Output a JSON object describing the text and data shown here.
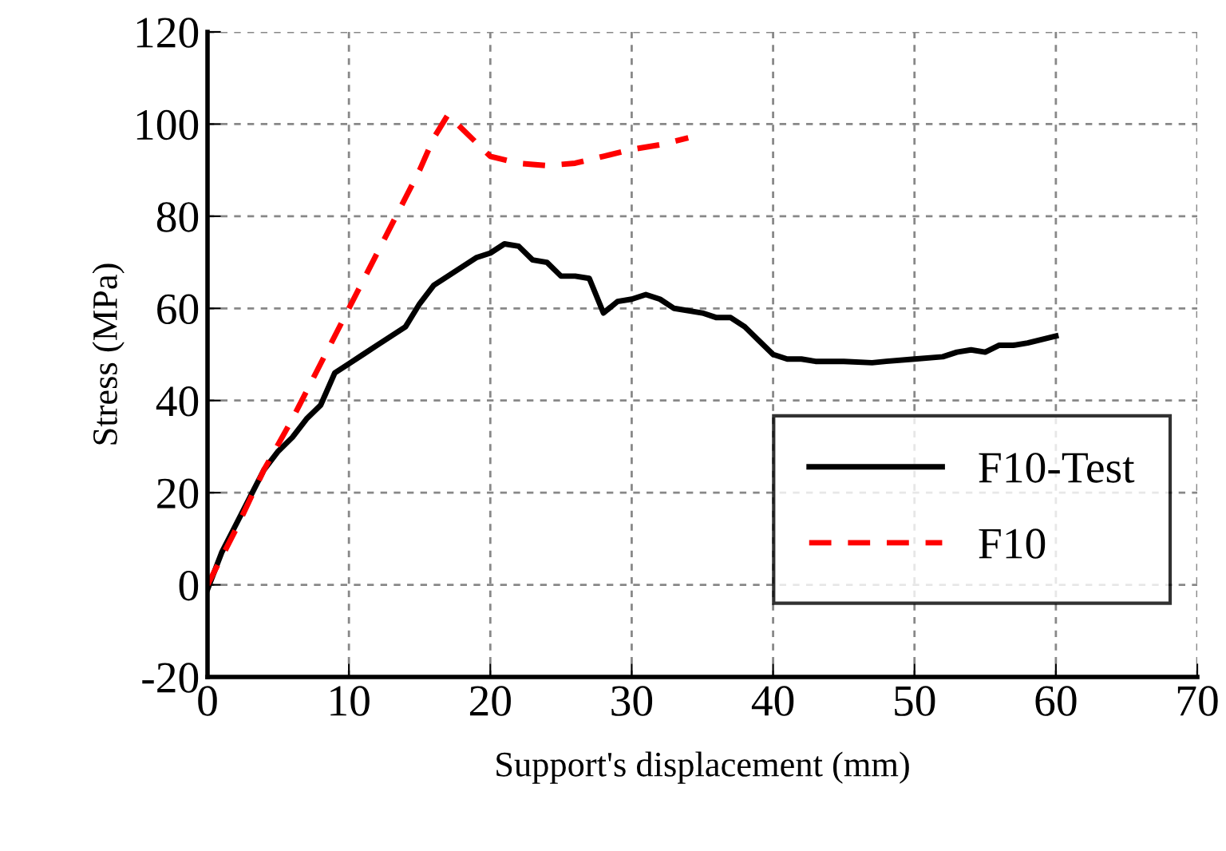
{
  "chart_data": {
    "type": "line",
    "xlabel": "Support's displacement (mm)",
    "ylabel": "Stress (MPa)",
    "xlim": [
      0,
      70
    ],
    "xticks": [
      0,
      10,
      20,
      30,
      40,
      50,
      60,
      70
    ],
    "ylim": [
      -20,
      120
    ],
    "yticks": [
      -20,
      0,
      20,
      40,
      60,
      80,
      100,
      120
    ],
    "grid": true,
    "legend": "bottom right",
    "marker": "none",
    "series": [
      {
        "name": "F10-Test",
        "color": "#000000",
        "line_style": "solid",
        "x": [
          0,
          1,
          2,
          3,
          4,
          5,
          6,
          7,
          8,
          9,
          10,
          11,
          12,
          13,
          14,
          15,
          16,
          17,
          18,
          19,
          20,
          21,
          22,
          23,
          24,
          25,
          26,
          27,
          28,
          29,
          30,
          31,
          32,
          33,
          35,
          36,
          37,
          38,
          39,
          40,
          41,
          42,
          43,
          45,
          47,
          48,
          50,
          52,
          53,
          54,
          55,
          56,
          57,
          58,
          60
        ],
        "values": [
          -1,
          7,
          13,
          19,
          25,
          29,
          32,
          36,
          39,
          46,
          48,
          50,
          52,
          54,
          56,
          61,
          65,
          67,
          69,
          71,
          72,
          74,
          73.5,
          70.5,
          70,
          67,
          67,
          66.5,
          59,
          61.5,
          62,
          63,
          62,
          60,
          59,
          58,
          58,
          56,
          53,
          50,
          49,
          49,
          48.5,
          48.5,
          48.2,
          48.5,
          49,
          49.5,
          50.5,
          51,
          50.5,
          52,
          52,
          52.5,
          54
        ]
      },
      {
        "name": "F10",
        "color": "#ff0000",
        "line_style": "dashed",
        "x": [
          0,
          2,
          4,
          6,
          8,
          10,
          12,
          14,
          15,
          16,
          17,
          18,
          19,
          20,
          22,
          24,
          26,
          28,
          30,
          32,
          34
        ],
        "values": [
          0,
          12,
          25,
          36,
          48,
          60,
          72,
          84,
          90,
          97,
          102,
          99,
          96,
          93,
          91.5,
          91,
          91.5,
          93,
          94.5,
          95.5,
          97
        ]
      }
    ]
  }
}
